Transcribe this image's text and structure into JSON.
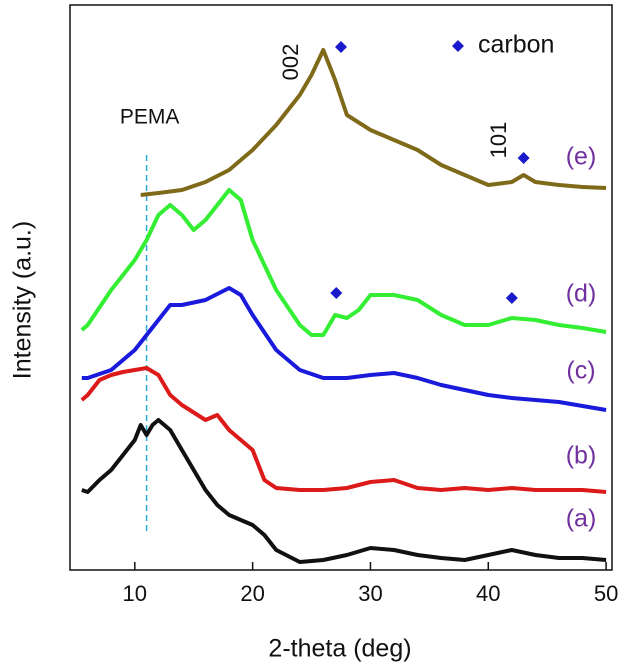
{
  "chart_data": {
    "type": "line",
    "xlabel": "2-theta (deg)",
    "ylabel": "Intensity (a.u.)",
    "xlim": [
      4.5,
      50.5
    ],
    "xticks": [
      10,
      20,
      30,
      40,
      50
    ],
    "ylim": [
      0,
      565
    ],
    "series": [
      {
        "name": "(a)",
        "color": "#111111",
        "x": [
          5.5,
          6,
          7,
          8,
          9,
          10,
          10.5,
          11,
          11.5,
          12,
          13,
          14,
          15,
          16,
          17,
          18,
          19,
          20,
          21,
          22,
          24,
          26,
          28,
          30,
          32,
          34,
          36,
          38,
          40,
          42,
          44,
          46,
          48,
          50
        ],
        "values": [
          80,
          78,
          90,
          100,
          115,
          130,
          145,
          135,
          145,
          150,
          140,
          120,
          100,
          80,
          65,
          55,
          50,
          45,
          35,
          20,
          8,
          10,
          15,
          22,
          20,
          15,
          12,
          10,
          15,
          20,
          15,
          12,
          12,
          10
        ]
      },
      {
        "name": "(b)",
        "color": "#dd1a1a",
        "x": [
          5.5,
          6,
          7,
          8,
          9,
          10,
          11,
          12,
          13,
          14,
          16,
          17,
          18,
          20,
          21,
          22,
          24,
          26,
          28,
          30,
          32,
          34,
          36,
          38,
          40,
          42,
          44,
          46,
          48,
          50
        ],
        "values": [
          170,
          175,
          190,
          195,
          198,
          200,
          202,
          195,
          175,
          165,
          150,
          155,
          140,
          120,
          90,
          82,
          80,
          80,
          82,
          88,
          90,
          82,
          80,
          82,
          80,
          82,
          80,
          80,
          80,
          78
        ]
      },
      {
        "name": "(c)",
        "color": "#1a1adc",
        "x": [
          5.5,
          6,
          8,
          10,
          11,
          12,
          13,
          14,
          16,
          18,
          19,
          20,
          22,
          24,
          26,
          28,
          30,
          32,
          34,
          36,
          38,
          40,
          42,
          44,
          46,
          48,
          50
        ],
        "values": [
          192,
          192,
          200,
          220,
          235,
          250,
          265,
          265,
          270,
          282,
          275,
          255,
          220,
          200,
          192,
          192,
          195,
          197,
          192,
          185,
          180,
          175,
          172,
          170,
          168,
          164,
          160
        ]
      },
      {
        "name": "(d)",
        "color": "#33ee33",
        "x": [
          5.5,
          6,
          8,
          10,
          11,
          12,
          13,
          14,
          15,
          16,
          17,
          18,
          19,
          20,
          22,
          24,
          25,
          26,
          27,
          28,
          29,
          30,
          32,
          34,
          36,
          38,
          40,
          42,
          44,
          46,
          48,
          50
        ],
        "values": [
          240,
          245,
          280,
          310,
          330,
          355,
          365,
          355,
          340,
          350,
          365,
          380,
          370,
          330,
          280,
          245,
          235,
          235,
          255,
          252,
          260,
          275,
          275,
          270,
          255,
          245,
          245,
          252,
          250,
          245,
          242,
          238
        ]
      },
      {
        "name": "(e)",
        "color": "#7f6a1a",
        "x": [
          10.5,
          12,
          14,
          16,
          18,
          20,
          22,
          24,
          25,
          26,
          27,
          28,
          30,
          32,
          34,
          36,
          38,
          40,
          42,
          43,
          44,
          46,
          48,
          50
        ],
        "values": [
          375,
          377,
          380,
          388,
          400,
          420,
          445,
          475,
          495,
          520,
          490,
          455,
          440,
          430,
          420,
          405,
          395,
          385,
          388,
          395,
          388,
          385,
          383,
          382
        ]
      }
    ],
    "markers": {
      "name": "carbon",
      "color": "#1a1acc",
      "x": [
        27.5,
        43,
        27.1,
        42
      ],
      "values": [
        523,
        412,
        277,
        272
      ]
    },
    "reference_lines": [
      {
        "x": 11,
        "label": "PEMA",
        "color": "#2aa8d8"
      }
    ],
    "annotations": [
      "002",
      "101"
    ],
    "series_label_color": "#7030a0"
  }
}
